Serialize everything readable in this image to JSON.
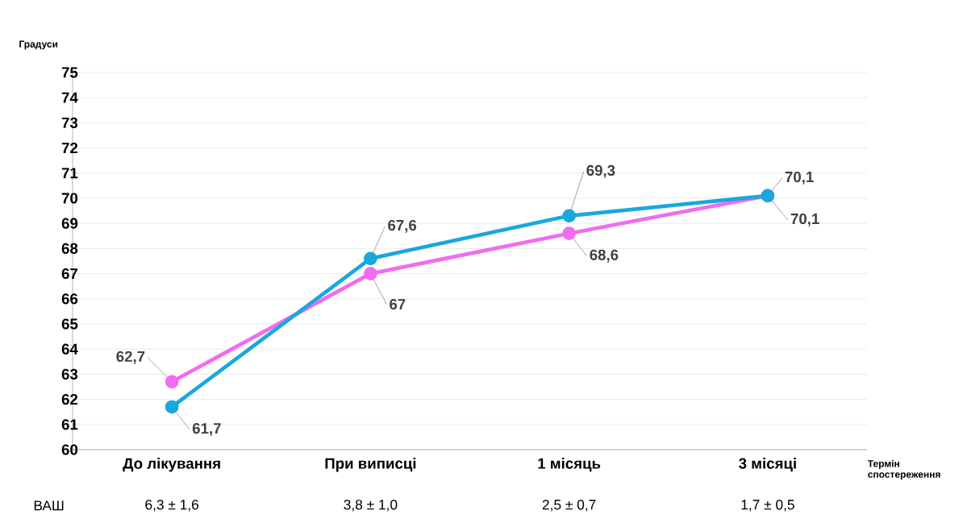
{
  "chart_data": {
    "type": "line",
    "ylabel": "Градуси",
    "xlabel": "Термін спостереження",
    "categories": [
      "До лікування",
      "При виписці",
      "1 місяць",
      "3 місяці"
    ],
    "series": [
      {
        "color": "#f06cf0",
        "values": [
          62.7,
          67,
          68.6,
          70.1
        ],
        "value_labels": [
          "62,7",
          "67",
          "68,6",
          "70,1"
        ]
      },
      {
        "color": "#1aa7de",
        "values": [
          61.7,
          67.6,
          69.3,
          70.1
        ],
        "value_labels": [
          "61,7",
          "67,6",
          "69,3",
          "70,1"
        ]
      }
    ],
    "annotations": [
      "ВАШ",
      "6,3 ± 1,6",
      "3,8 ± 1,0",
      "2,5 ± 0,7",
      "1,7 ± 0,5"
    ],
    "ylim": [
      60,
      75
    ],
    "yticks": [
      60,
      61,
      62,
      63,
      64,
      65,
      66,
      67,
      68,
      69,
      70,
      71,
      72,
      73,
      74,
      75
    ],
    "grid": "y",
    "marker": "circle",
    "line_style": "solid"
  }
}
